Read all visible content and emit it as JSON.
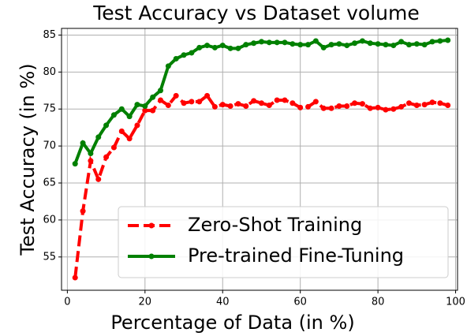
{
  "chart_data": {
    "type": "line",
    "title": "Test Accuracy vs Dataset volume",
    "xlabel": "Percentage of Data (in %)",
    "ylabel": "Test Accuracy (in %)",
    "x": [
      2,
      4,
      6,
      8,
      10,
      12,
      14,
      16,
      18,
      20,
      22,
      24,
      26,
      28,
      30,
      32,
      34,
      36,
      38,
      40,
      42,
      44,
      46,
      48,
      50,
      52,
      54,
      56,
      58,
      60,
      62,
      64,
      66,
      68,
      70,
      72,
      74,
      76,
      78,
      80,
      82,
      84,
      86,
      88,
      90,
      92,
      94,
      96,
      98
    ],
    "series": [
      {
        "name": "Zero-Shot Training",
        "color": "#ff0000",
        "dashed": true,
        "values": [
          52.2,
          61.2,
          68,
          65.5,
          68.5,
          69.8,
          72,
          71,
          72.8,
          74.8,
          74.8,
          76.2,
          75.5,
          76.8,
          75.8,
          76,
          76,
          76.8,
          75.3,
          75.6,
          75.4,
          75.7,
          75.4,
          76.1,
          75.8,
          75.5,
          76.2,
          76.2,
          75.8,
          75.2,
          75.3,
          76,
          75.1,
          75.1,
          75.4,
          75.4,
          75.8,
          75.7,
          75.1,
          75.2,
          74.9,
          75,
          75.3,
          75.8,
          75.5,
          75.6,
          75.9,
          75.8,
          75.5
        ]
      },
      {
        "name": "Pre-trained Fine-Tuning",
        "color": "#008000",
        "dashed": false,
        "values": [
          67.6,
          70.4,
          69,
          71.2,
          72.8,
          74.2,
          75,
          74,
          75.6,
          75.4,
          76.6,
          77.5,
          80.8,
          81.8,
          82.3,
          82.6,
          83.3,
          83.6,
          83.3,
          83.6,
          83.2,
          83.2,
          83.7,
          83.9,
          84.1,
          84,
          84,
          84,
          83.8,
          83.7,
          83.7,
          84.2,
          83.3,
          83.7,
          83.8,
          83.6,
          83.9,
          84.2,
          83.9,
          83.8,
          83.7,
          83.6,
          84.1,
          83.7,
          83.8,
          83.7,
          84.1,
          84.2,
          84.3
        ]
      }
    ],
    "xlim": [
      -1.5,
      100.5
    ],
    "ylim": [
      50.5,
      85.9
    ],
    "xticks": [
      0,
      20,
      40,
      60,
      80,
      100
    ],
    "yticks": [
      55,
      60,
      65,
      70,
      75,
      80,
      85
    ],
    "grid": true,
    "legend": "lower right"
  }
}
